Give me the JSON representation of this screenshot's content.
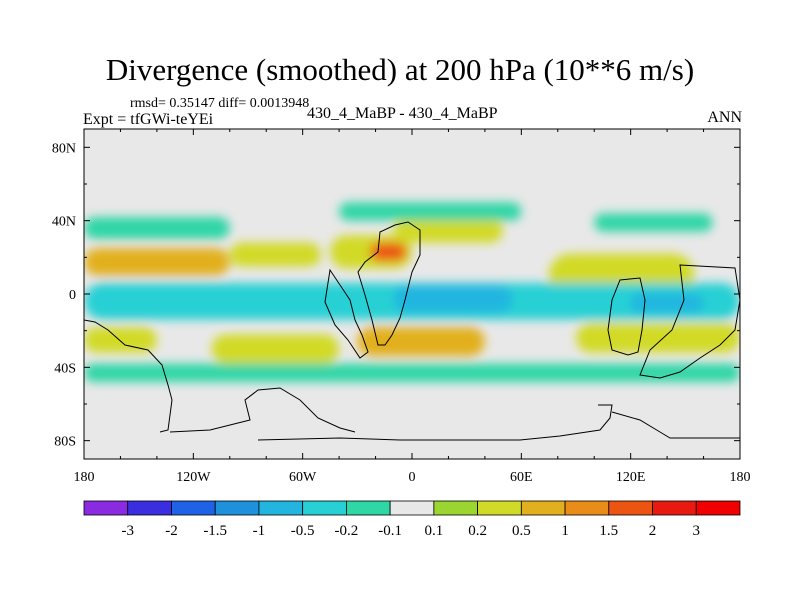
{
  "title": "Divergence (smoothed) at 200 hPa (10**6 m/s)",
  "stats_line": "rmsd= 0.35147 diff= 0.0013948",
  "expt_label": "Expt = tfGWi-teYEi",
  "center_label": "430_4_MaBP - 430_4_MaBP",
  "period_label": "ANN",
  "chart_data": {
    "type": "heatmap",
    "title": "Divergence (smoothed) at 200 hPa (10**6 m/s)",
    "x_range": [
      -180,
      180
    ],
    "y_range": [
      -90,
      90
    ],
    "x_ticks": [
      {
        "value": -180,
        "label": "180"
      },
      {
        "value": -120,
        "label": "120W"
      },
      {
        "value": -60,
        "label": "60W"
      },
      {
        "value": 0,
        "label": "0"
      },
      {
        "value": 60,
        "label": "60E"
      },
      {
        "value": 120,
        "label": "120E"
      },
      {
        "value": 180,
        "label": "180"
      }
    ],
    "y_ticks": [
      {
        "value": 80,
        "label": "80N"
      },
      {
        "value": 40,
        "label": "40N"
      },
      {
        "value": 0,
        "label": "0"
      },
      {
        "value": -40,
        "label": "40S"
      },
      {
        "value": -80,
        "label": "80S"
      }
    ],
    "colorbar": {
      "levels": [
        "-3",
        "-2",
        "-1.5",
        "-1",
        "-0.5",
        "-0.2",
        "-0.1",
        "0.1",
        "0.2",
        "0.5",
        "1",
        "1.5",
        "2",
        "3"
      ],
      "colors": [
        "#8a2be2",
        "#3a2ee0",
        "#1f62e8",
        "#1e90dc",
        "#21b5e0",
        "#27d0d4",
        "#2fd6a6",
        "#e8e8e8",
        "#9bd630",
        "#d2da28",
        "#e2b01e",
        "#ea8c18",
        "#ec5412",
        "#e81a10",
        "#f00000"
      ]
    },
    "regions": [
      {
        "value": 0.5,
        "lon": [
          -180,
          -100
        ],
        "lat": [
          10,
          25
        ]
      },
      {
        "value": 0.3,
        "lon": [
          -100,
          -50
        ],
        "lat": [
          15,
          28
        ]
      },
      {
        "value": 0.4,
        "lon": [
          -45,
          0
        ],
        "lat": [
          14,
          32
        ]
      },
      {
        "value": 1.5,
        "lon": [
          -23,
          -3
        ],
        "lat": [
          18,
          28
        ]
      },
      {
        "value": 0.3,
        "lon": [
          -10,
          50
        ],
        "lat": [
          28,
          42
        ]
      },
      {
        "value": 0.3,
        "lon": [
          75,
          155
        ],
        "lat": [
          -2,
          22
        ]
      },
      {
        "value": 0.2,
        "lon": [
          -180,
          -140
        ],
        "lat": [
          -32,
          -18
        ]
      },
      {
        "value": 0.3,
        "lon": [
          -110,
          -40
        ],
        "lat": [
          -38,
          -22
        ]
      },
      {
        "value": 0.5,
        "lon": [
          -30,
          40
        ],
        "lat": [
          -34,
          -18
        ]
      },
      {
        "value": 0.2,
        "lon": [
          90,
          180
        ],
        "lat": [
          -32,
          -16
        ]
      },
      {
        "value": -0.15,
        "lon": [
          -180,
          -100
        ],
        "lat": [
          30,
          42
        ]
      },
      {
        "value": -0.15,
        "lon": [
          -40,
          60
        ],
        "lat": [
          40,
          50
        ]
      },
      {
        "value": -0.15,
        "lon": [
          100,
          165
        ],
        "lat": [
          34,
          44
        ]
      },
      {
        "value": -0.5,
        "lon": [
          -180,
          180
        ],
        "lat": [
          -14,
          6
        ]
      },
      {
        "value": -0.8,
        "lon": [
          -10,
          55
        ],
        "lat": [
          -10,
          5
        ]
      },
      {
        "value": -1.0,
        "lon": [
          120,
          160
        ],
        "lat": [
          -10,
          0
        ]
      },
      {
        "value": -0.15,
        "lon": [
          -180,
          180
        ],
        "lat": [
          -48,
          -38
        ]
      }
    ]
  }
}
